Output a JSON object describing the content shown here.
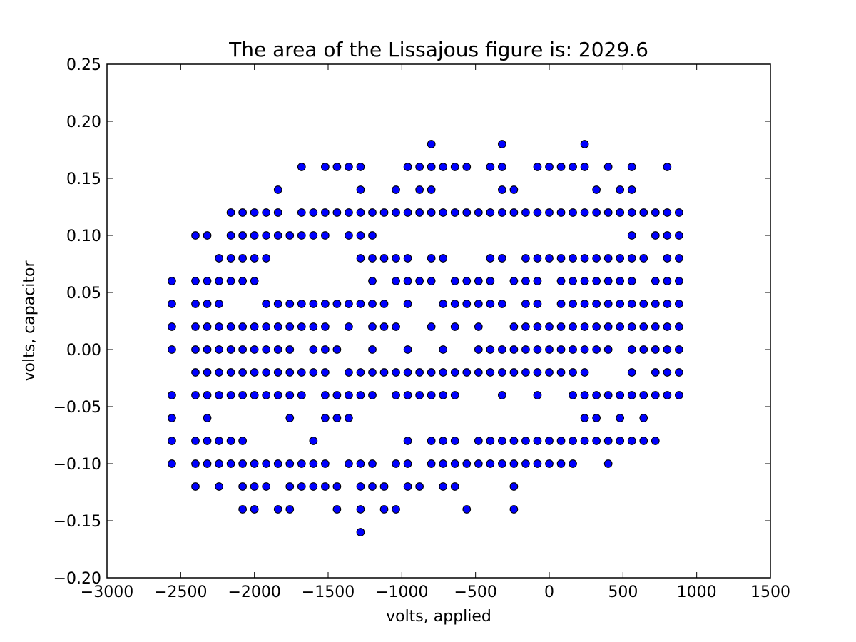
{
  "chart_data": {
    "type": "scatter",
    "title": "The area of the Lissajous figure is: 2029.6",
    "xlabel": "volts, applied",
    "ylabel": "volts, capacitor",
    "xlim": [
      -3000,
      1500
    ],
    "ylim": [
      -0.2,
      0.25
    ],
    "xticks": [
      -3000,
      -2500,
      -2000,
      -1500,
      -1000,
      -500,
      0,
      500,
      1000,
      1500
    ],
    "xtick_labels": [
      "−3000",
      "−2500",
      "−2000",
      "−1500",
      "−1000",
      "−500",
      "0",
      "500",
      "1000",
      "1500"
    ],
    "yticks": [
      -0.2,
      -0.15,
      -0.1,
      -0.05,
      0.0,
      0.05,
      0.1,
      0.15,
      0.2,
      0.25
    ],
    "ytick_labels": [
      "−0.20",
      "−0.15",
      "−0.10",
      "−0.05",
      "0.00",
      "0.05",
      "0.10",
      "0.15",
      "0.20",
      "0.25"
    ],
    "grid": false,
    "marker_color": "#0000ff",
    "marker_edge": "#000000",
    "rows": [
      {
        "y": 0.18,
        "x": [
          -800,
          -320,
          240
        ]
      },
      {
        "y": 0.16,
        "x": [
          -1680,
          -1520,
          -1440,
          -1360,
          -1280,
          -960,
          -880,
          -800,
          -720,
          -640,
          -560,
          -400,
          -320,
          -80,
          0,
          80,
          160,
          240,
          400,
          560,
          800
        ]
      },
      {
        "y": 0.14,
        "x": [
          -1840,
          -1280,
          -1040,
          -880,
          -800,
          -320,
          -240,
          320,
          480,
          560
        ]
      },
      {
        "y": 0.12,
        "x": [
          -2160,
          -2080,
          -2000,
          -1920,
          -1840,
          -1680,
          -1600,
          -1520,
          -1440,
          -1360,
          -1280,
          -1200,
          -1120,
          -1040,
          -960,
          -880,
          -800,
          -720,
          -640,
          -560,
          -480,
          -400,
          -320,
          -240,
          -160,
          -80,
          0,
          80,
          160,
          240,
          320,
          400,
          480,
          560,
          640,
          720,
          800,
          880
        ]
      },
      {
        "y": 0.1,
        "x": [
          -2400,
          -2320,
          -2160,
          -2080,
          -2000,
          -1920,
          -1840,
          -1760,
          -1680,
          -1600,
          -1520,
          -1360,
          -1280,
          -1200,
          560,
          720,
          800,
          880
        ]
      },
      {
        "y": 0.08,
        "x": [
          -2240,
          -2160,
          -2080,
          -2000,
          -1920,
          -1280,
          -1200,
          -1120,
          -1040,
          -960,
          -800,
          -720,
          -400,
          -320,
          -160,
          -80,
          0,
          80,
          160,
          240,
          320,
          400,
          480,
          560,
          640,
          800,
          880
        ]
      },
      {
        "y": 0.06,
        "x": [
          -2560,
          -2400,
          -2320,
          -2240,
          -2160,
          -2080,
          -2000,
          -1200,
          -1040,
          -960,
          -880,
          -800,
          -640,
          -560,
          -480,
          -400,
          -240,
          -160,
          -80,
          80,
          160,
          240,
          320,
          400,
          480,
          560,
          720,
          800,
          880
        ]
      },
      {
        "y": 0.04,
        "x": [
          -2560,
          -2400,
          -2320,
          -2240,
          -1920,
          -1840,
          -1760,
          -1680,
          -1600,
          -1520,
          -1440,
          -1360,
          -1280,
          -1200,
          -1120,
          -960,
          -720,
          -640,
          -560,
          -480,
          -400,
          -320,
          -160,
          -80,
          80,
          160,
          240,
          320,
          400,
          480,
          560,
          640,
          720,
          800,
          880
        ]
      },
      {
        "y": 0.02,
        "x": [
          -2560,
          -2400,
          -2320,
          -2240,
          -2160,
          -2080,
          -2000,
          -1920,
          -1840,
          -1760,
          -1680,
          -1600,
          -1520,
          -1360,
          -1200,
          -1120,
          -1040,
          -800,
          -640,
          -480,
          -240,
          -160,
          -80,
          0,
          80,
          160,
          240,
          320,
          400,
          480,
          560,
          640,
          720,
          800,
          880
        ]
      },
      {
        "y": 0.0,
        "x": [
          -2560,
          -2400,
          -2320,
          -2240,
          -2160,
          -2080,
          -2000,
          -1920,
          -1840,
          -1760,
          -1600,
          -1520,
          -1440,
          -1200,
          -960,
          -720,
          -480,
          -400,
          -320,
          -240,
          -160,
          -80,
          0,
          80,
          160,
          240,
          320,
          400,
          560,
          640,
          720,
          800,
          880
        ]
      },
      {
        "y": -0.02,
        "x": [
          -2400,
          -2320,
          -2240,
          -2160,
          -2080,
          -2000,
          -1920,
          -1840,
          -1760,
          -1680,
          -1600,
          -1520,
          -1360,
          -1280,
          -1200,
          -1120,
          -1040,
          -960,
          -880,
          -800,
          -720,
          -640,
          -560,
          -480,
          -400,
          -320,
          -240,
          -160,
          -80,
          0,
          80,
          160,
          240,
          560,
          720,
          800,
          880
        ]
      },
      {
        "y": -0.04,
        "x": [
          -2560,
          -2400,
          -2320,
          -2240,
          -2160,
          -2080,
          -2000,
          -1920,
          -1840,
          -1760,
          -1680,
          -1520,
          -1440,
          -1360,
          -1280,
          -1200,
          -1040,
          -960,
          -880,
          -800,
          -720,
          -640,
          -320,
          -80,
          160,
          240,
          320,
          400,
          480,
          560,
          640,
          720,
          800,
          880
        ]
      },
      {
        "y": -0.06,
        "x": [
          -2560,
          -2320,
          -1760,
          -1520,
          -1440,
          -1360,
          240,
          320,
          480,
          640
        ]
      },
      {
        "y": -0.08,
        "x": [
          -2560,
          -2400,
          -2320,
          -2240,
          -2160,
          -2080,
          -1600,
          -960,
          -800,
          -720,
          -640,
          -480,
          -400,
          -320,
          -240,
          -160,
          -80,
          0,
          80,
          160,
          240,
          320,
          400,
          480,
          560,
          640,
          720
        ]
      },
      {
        "y": -0.1,
        "x": [
          -2560,
          -2400,
          -2320,
          -2240,
          -2160,
          -2080,
          -2000,
          -1920,
          -1840,
          -1760,
          -1680,
          -1600,
          -1520,
          -1360,
          -1280,
          -1200,
          -1040,
          -960,
          -800,
          -720,
          -640,
          -560,
          -480,
          -400,
          -320,
          -240,
          -160,
          -80,
          0,
          80,
          160,
          400
        ]
      },
      {
        "y": -0.12,
        "x": [
          -2400,
          -2240,
          -2080,
          -2000,
          -1920,
          -1760,
          -1680,
          -1600,
          -1520,
          -1440,
          -1280,
          -1200,
          -1120,
          -960,
          -880,
          -720,
          -640,
          -240
        ]
      },
      {
        "y": -0.14,
        "x": [
          -2080,
          -2000,
          -1840,
          -1760,
          -1440,
          -1280,
          -1120,
          -1040,
          -560,
          -240
        ]
      },
      {
        "y": -0.16,
        "x": [
          -1280
        ]
      }
    ]
  }
}
